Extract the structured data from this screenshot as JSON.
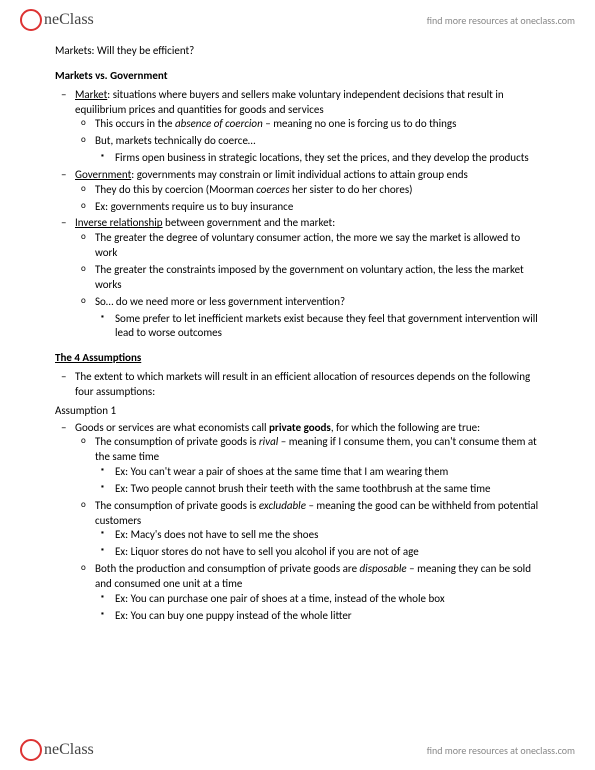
{
  "brand": "neClass",
  "tagline": "find more resources at oneclass.com",
  "title": "Markets: Will they be efficient?",
  "s1": {
    "head": "Markets vs. Government",
    "market_label": "Market",
    "market_def": ": situations where buyers and sellers make voluntary independent decisions that result in equilibrium prices and quantities for goods and services",
    "m_sub1a": "This occurs in the ",
    "m_sub1b": "absence of coercion",
    "m_sub1c": " – meaning no one is forcing us to do things",
    "m_sub2": "But, markets technically do coerce…",
    "m_sub2_1": "Firms open business in strategic locations, they set the prices, and they develop the products",
    "gov_label": "Government",
    "gov_def": ": governments may constrain or limit individual actions to attain group ends",
    "g_sub1a": "They do this by coercion (Moorman ",
    "g_sub1b": "coerces",
    "g_sub1c": " her sister to do her chores)",
    "g_sub2": "Ex: governments require us to buy insurance",
    "inv_label": "Inverse relationship",
    "inv_def": " between government and the market:",
    "inv_sub1": "The greater the degree of voluntary consumer action, the more we say the market is allowed to work",
    "inv_sub2": "The greater the constraints imposed by the government on voluntary action, the less the market works",
    "inv_sub3": "So… do we need more or less government intervention?",
    "inv_sub3_1": "Some prefer to let inefficient markets exist because they feel that government intervention will lead to worse outcomes"
  },
  "s2": {
    "head": "The 4 Assumptions",
    "intro": "The extent to which markets will result in an efficient allocation of resources depends on the following four assumptions:",
    "a1_label": "Assumption 1",
    "a1_main_a": "Goods or services are what economists call ",
    "a1_main_b": "private goods",
    "a1_main_c": ", for which the following are true:",
    "rival_a": "The consumption of private goods is ",
    "rival_b": "rival",
    "rival_c": " – meaning if I consume them, you can't consume them at the same time",
    "rival_ex1": "Ex: You can't wear a pair of shoes at the same time that I am wearing them",
    "rival_ex2": "Ex: Two people cannot brush their teeth with the same toothbrush at the same time",
    "excl_a": "The consumption of private goods is ",
    "excl_b": "excludable",
    "excl_c": " – meaning the good can be withheld from potential customers",
    "excl_ex1": "Ex: Macy's does not have to sell me the shoes",
    "excl_ex2": "Ex: Liquor stores do not have to sell you alcohol if you are not of age",
    "disp_a": "Both the production and consumption of private goods are ",
    "disp_b": "disposable",
    "disp_c": " – meaning they can be sold and consumed one unit at a time",
    "disp_ex1": "Ex: You can purchase one pair of shoes at a time, instead of the whole box",
    "disp_ex2": "Ex: You can buy one puppy instead of the whole litter"
  }
}
